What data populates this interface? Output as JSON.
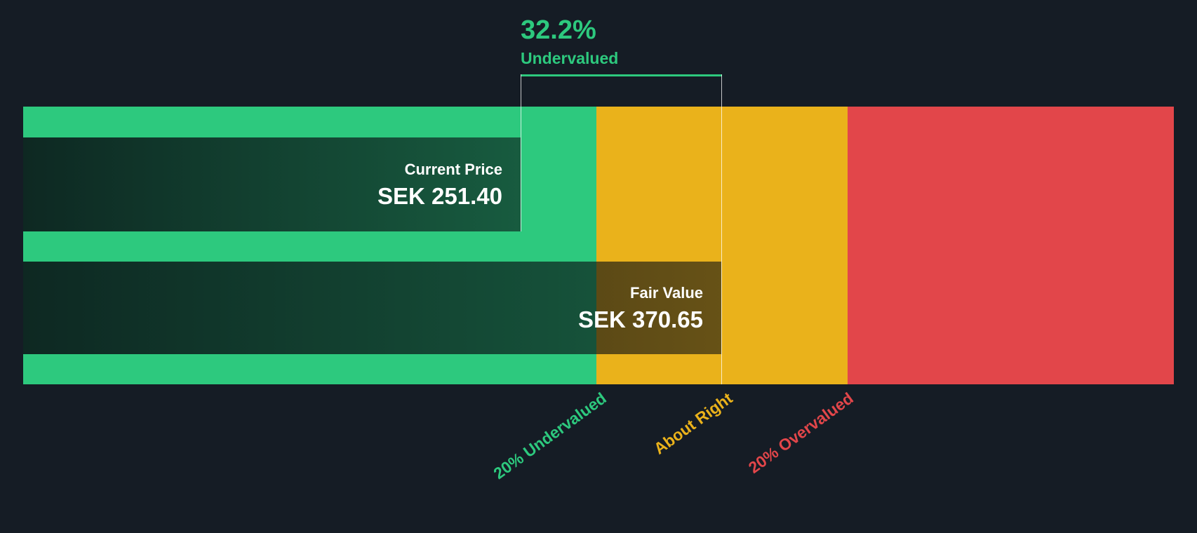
{
  "chart_data": {
    "type": "bar",
    "subtype": "valuation-gauge",
    "valuation": {
      "percent": "32.2%",
      "status": "Undervalued"
    },
    "current_price": {
      "label": "Current Price",
      "display": "SEK 251.40",
      "value": 251.4,
      "currency": "SEK"
    },
    "fair_value": {
      "label": "Fair Value",
      "display": "SEK 370.65",
      "value": 370.65,
      "currency": "SEK"
    },
    "zones": [
      {
        "label": "20% Undervalued",
        "color": "#2dc97e"
      },
      {
        "label": "About Right",
        "color": "#eab21b"
      },
      {
        "label": "20% Overvalued",
        "color": "#e2464a"
      }
    ],
    "colors": {
      "background": "#151c25",
      "price_text": "#ffffff",
      "connector_line": "rgba(255,255,255,0.75)"
    },
    "layout": {
      "grid": false,
      "legend_position": "bottom-rotated"
    }
  }
}
